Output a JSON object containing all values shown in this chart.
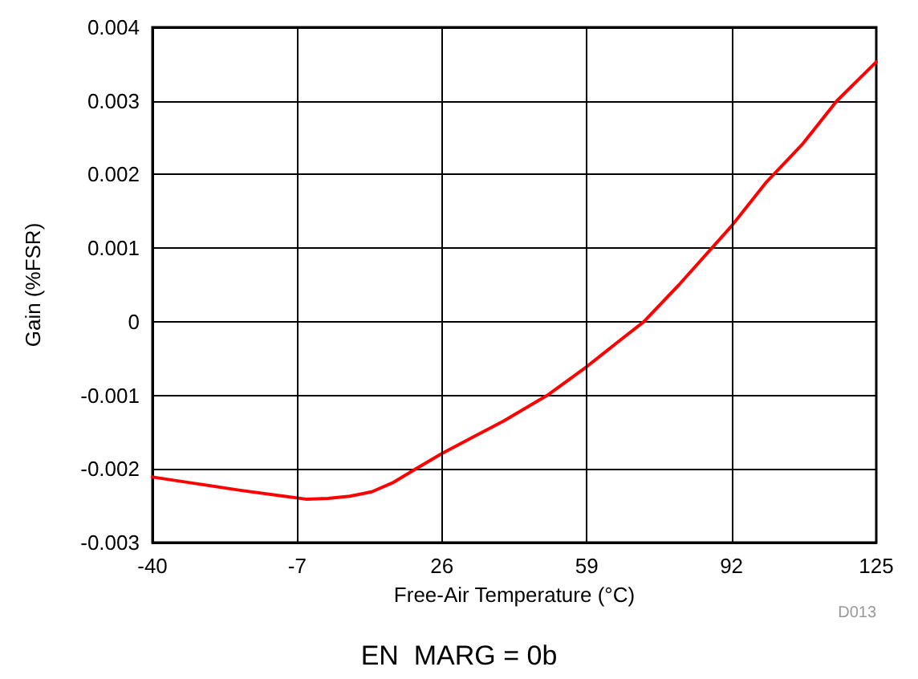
{
  "chart_data": {
    "type": "line",
    "xlabel": "Free-Air Temperature (°C)",
    "ylabel": "Gain (%FSR)",
    "x": [
      -40,
      -30,
      -20,
      -10,
      -5,
      0,
      5,
      10,
      15,
      20,
      26,
      33,
      40,
      50,
      59,
      66,
      72,
      80,
      92,
      100,
      108,
      116,
      125
    ],
    "series": [
      {
        "color": "#ff0000",
        "values": [
          -0.00211,
          -0.0022,
          -0.00229,
          -0.00237,
          -0.00241,
          -0.0024,
          -0.00237,
          -0.00231,
          -0.00218,
          -0.002,
          -0.00179,
          -0.00157,
          -0.00135,
          -0.001,
          -0.00061,
          -0.00028,
          0,
          0.0005,
          0.0013,
          0.0019,
          0.0024,
          0.003,
          0.00353
        ]
      }
    ],
    "xlim": [
      -40,
      125
    ],
    "xticks": [
      -40,
      -7,
      26,
      59,
      92,
      125
    ],
    "ylim": [
      -0.003,
      0.004
    ],
    "yticks": [
      -0.003,
      -0.002,
      -0.001,
      0,
      0.001,
      0.002,
      0.003,
      0.004
    ],
    "grid": true,
    "marker": "none",
    "line_style": "solid",
    "annotations": [
      "D013",
      "EN  MARG = 0b"
    ]
  }
}
